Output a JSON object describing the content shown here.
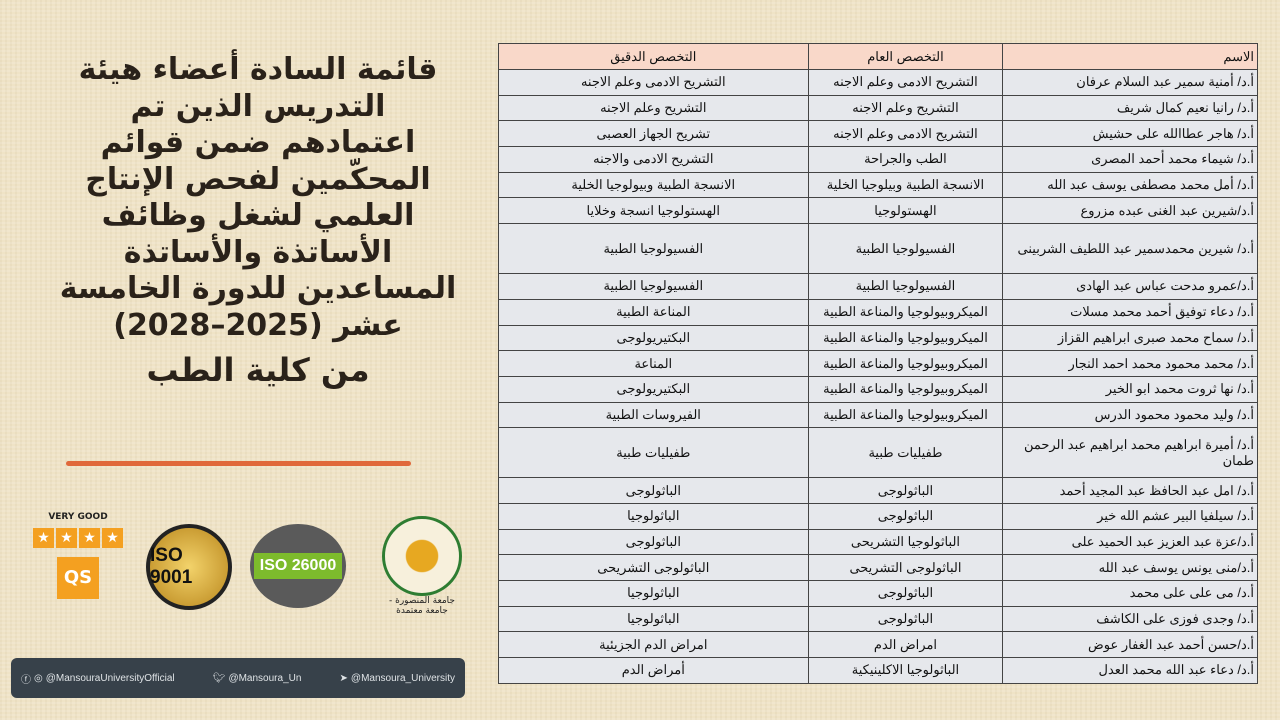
{
  "title": {
    "lines": [
      "قائمة السادة أعضاء هيئة",
      "التدريس الذين تم",
      "اعتمادهم ضمن قوائم",
      "المحكّمين لفحص الإنتاج",
      "العلمي لشغل وظائف",
      "الأساتذة والأساتذة",
      "المساعدين للدورة الخامسة",
      "عشر (2025–2028)"
    ],
    "faculty": "من كلية الطب"
  },
  "table": {
    "headers": {
      "name": "الاسم",
      "general": "التخصص العام",
      "precise": "التخصص الدقيق"
    },
    "rows": [
      {
        "name": "أ.د/ أمنية سمير عبد السلام عرفان",
        "general": "التشريح الادمى وعلم الاجنه",
        "precise": "التشريح الادمى وعلم الاجنه"
      },
      {
        "name": "أ.د/ رانيا نعيم كمال شريف",
        "general": "التشريح وعلم الاجنه",
        "precise": "التشريح وعلم الاجنه"
      },
      {
        "name": "أ.د/ هاجر عطاالله على حشيش",
        "general": "التشريح الادمى وعلم الاجنه",
        "precise": "تشريح الجهاز العصبى"
      },
      {
        "name": "أ.د/ شيماء محمد أحمد المصرى",
        "general": "الطب والجراحة",
        "precise": "التشريح الادمى والاجنه"
      },
      {
        "name": "أ.د/ أمل محمد مصطفى يوسف عبد الله",
        "general": "الانسجة الطبية وبيلوجيا الخلية",
        "precise": "الانسجة الطبية وبيولوجيا الخلية"
      },
      {
        "name": "أ.د/شيرين عبد الغنى عبده مزروع",
        "general": "الهستولوجيا",
        "precise": "الهستولوجيا انسجة وخلايا"
      },
      {
        "name": "أ.د/ شيرين محمدسمير عبد اللطيف الشربينى",
        "general": "الفسيولوجيا الطبية",
        "precise": "الفسيولوجيا الطبية",
        "tall": true
      },
      {
        "name": "أ.د/عمرو مدحت عباس عبد الهادى",
        "general": "الفسيولوجيا الطبية",
        "precise": "الفسيولوجيا الطبية"
      },
      {
        "name": "أ.د/ دعاء توفيق أحمد محمد مسلات",
        "general": "الميكروبيولوجيا والمناعة الطبية",
        "precise": "المناعة الطبية"
      },
      {
        "name": "أ.د/ سماح محمد صبرى ابراهيم القزاز",
        "general": "الميكروبيولوجيا والمناعة الطبية",
        "precise": "البكتيريولوجى"
      },
      {
        "name": "أ.د/ محمد محمود محمد احمد النجار",
        "general": "الميكروبيولوجيا والمناعة الطبية",
        "precise": "المناعة"
      },
      {
        "name": "أ.د/ نها ثروت محمد ابو الخير",
        "general": "الميكروبيولوجيا والمناعة الطبية",
        "precise": "البكتيريولوجى"
      },
      {
        "name": "أ.د/ وليد محمود محمود الدرس",
        "general": "الميكروبيولوجيا والمناعة الطبية",
        "precise": "الفيروسات الطبية"
      },
      {
        "name": "أ.د/ أميرة ابراهيم محمد ابراهيم عبد الرحمن طمان",
        "general": "طفيليات طبية",
        "precise": "طفيليات طبية",
        "tall": true
      },
      {
        "name": "أ.د/ امل عبد الحافظ عبد المجيد أحمد",
        "general": "الباثولوجى",
        "precise": "الباثولوجى"
      },
      {
        "name": "أ.د/ سيلفيا البير عشم الله خير",
        "general": "الباثولوجى",
        "precise": "الباثولوجيا"
      },
      {
        "name": "أ.د/عزة عبد العزيز عبد الحميد على",
        "general": "الباثولوجيا التشريحى",
        "precise": "الباثولوجى"
      },
      {
        "name": "أ.د/منى يونس يوسف عبد الله",
        "general": "الباثولوجى التشريحى",
        "precise": "الباثولوجى التشريحى"
      },
      {
        "name": "أ.د/ مى على على محمد",
        "general": "الباثولوجى",
        "precise": "الباثولوجيا"
      },
      {
        "name": "أ.د/ وجدى فوزى على الكاشف",
        "general": "الباثولوجى",
        "precise": "الباثولوجيا"
      },
      {
        "name": "أ.د/حسن أحمد عبد الغفار عوض",
        "general": "امراض الدم",
        "precise": "امراض الدم الجزيئية"
      },
      {
        "name": "أ.د/ دعاء عبد الله محمد العدل",
        "general": "الباثولوجيا الاكلينيكية",
        "precise": "أمراض الدم"
      }
    ]
  },
  "badges": {
    "qs_rating": "VERY GOOD",
    "qs_stars": 4,
    "qs_logo": "QS",
    "iso1": "ISO 9001",
    "iso2": "ISO 26000",
    "logo_caption": "جامعة المنصورة - جامعة معتمدة"
  },
  "social": {
    "facebook_instagram": "@MansouraUniversityOfficial",
    "twitter": "@Mansoura_Un",
    "telegram": "@Mansoura_University"
  },
  "colors": {
    "header_bg": "#f9d8c9",
    "row_bg": "#e6e8ec",
    "accent_rule": "#e0683a",
    "footer_bg": "#37414a"
  }
}
